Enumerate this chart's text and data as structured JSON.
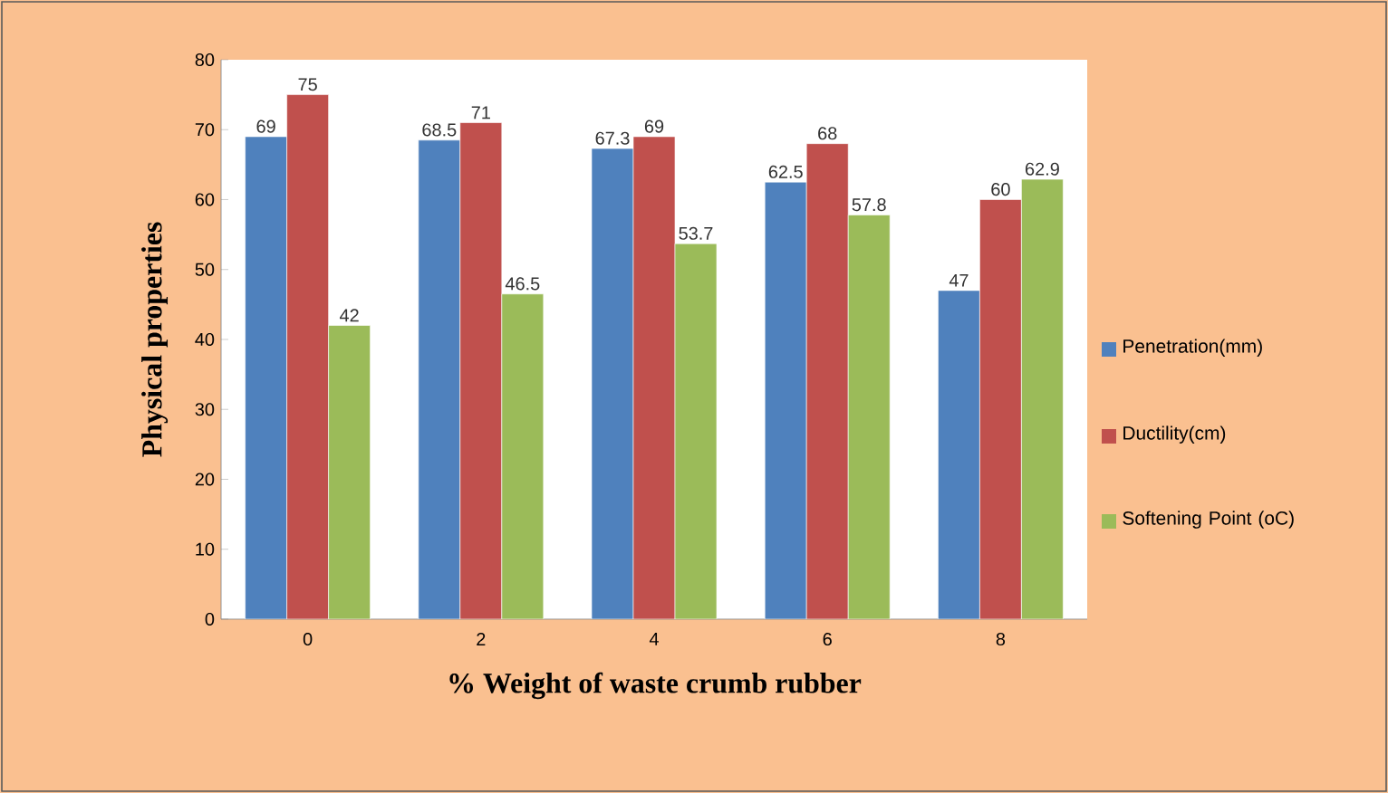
{
  "chart_data": {
    "type": "bar",
    "xlabel": "% Weight of waste crumb rubber",
    "ylabel": "Physical properties",
    "categories": [
      "0",
      "2",
      "4",
      "6",
      "8"
    ],
    "series": [
      {
        "name": "Penetration(mm)",
        "color": "#4f81bd",
        "values": [
          69,
          68.5,
          67.3,
          62.5,
          47
        ]
      },
      {
        "name": "Ductility(cm)",
        "color": "#c0504d",
        "values": [
          75,
          71,
          69,
          68,
          60
        ]
      },
      {
        "name": "Softening Point (oC)",
        "color": "#9bbb59",
        "values": [
          42,
          46.5,
          53.7,
          57.8,
          62.9
        ]
      }
    ],
    "ylim": [
      0,
      80
    ],
    "yticks": [
      0,
      10,
      20,
      30,
      40,
      50,
      60,
      70,
      80
    ],
    "data_labels": true,
    "legend": "right"
  }
}
